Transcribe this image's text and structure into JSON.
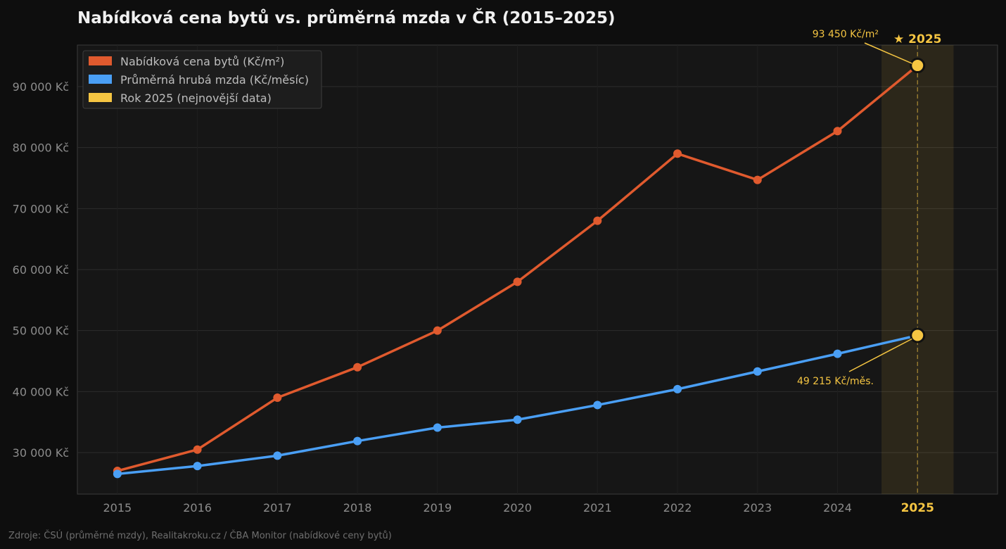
{
  "chart_data": {
    "type": "line",
    "title": "Nabídková cena bytů vs. průměrná mzda v ČR (2015–2025)",
    "x": [
      2015,
      2016,
      2017,
      2018,
      2019,
      2020,
      2021,
      2022,
      2023,
      2024,
      2025
    ],
    "x_tick_labels": [
      "2015",
      "2016",
      "2017",
      "2018",
      "2019",
      "2020",
      "2021",
      "2022",
      "2023",
      "2024",
      "2025"
    ],
    "series": [
      {
        "name": "Nabídková cena bytů (Kč/m²)",
        "color": "#e05a2e",
        "values": [
          27000,
          30500,
          39000,
          44000,
          50000,
          58000,
          68000,
          79000,
          74700,
          82700,
          93450
        ]
      },
      {
        "name": "Průměrná hrubá mzda (Kč/měsíc)",
        "color": "#4a9ff5",
        "values": [
          26500,
          27800,
          29500,
          31900,
          34100,
          35400,
          37800,
          40400,
          43300,
          46200,
          49215
        ]
      }
    ],
    "highlight": {
      "name": "Rok 2025 (nejnovější data)",
      "color": "#f5c542",
      "x": 2025,
      "label": "★ 2025"
    },
    "annotations": [
      {
        "text": "93 450 Kč/m²",
        "series": 0,
        "x": 2025
      },
      {
        "text": "49 215 Kč/měs.",
        "series": 1,
        "x": 2025
      }
    ],
    "y_ticks": [
      30000,
      40000,
      50000,
      60000,
      70000,
      80000,
      90000
    ],
    "y_tick_labels": [
      "30 000 Kč",
      "40 000 Kč",
      "50 000 Kč",
      "60 000 Kč",
      "70 000 Kč",
      "80 000 Kč",
      "90 000 Kč"
    ],
    "xlim": [
      2014.5,
      2026.0
    ],
    "ylim": [
      23200,
      96800
    ],
    "grid": true,
    "legend_position": "top-left",
    "source": "Zdroje: ČSÚ (průměrné mzdy), Realitakroku.cz / ČBA Monitor (nabídkové ceny bytů)"
  }
}
